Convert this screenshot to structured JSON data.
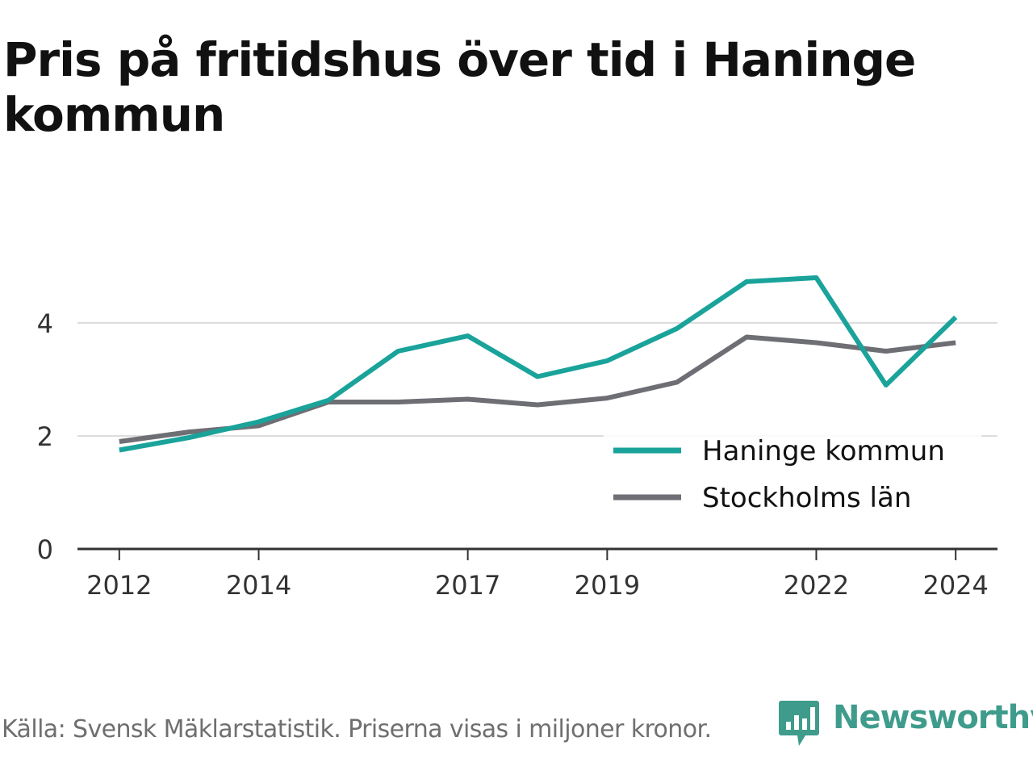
{
  "title": "Pris på fritidshus över tid i Haninge kommun",
  "footer": {
    "source": "Källa: Svensk Mäklarstatistik. Priserna visas i miljoner kronor.",
    "brand": "Newsworthy",
    "brand_icon": "bar-chart-speech-bubble-icon",
    "brand_color": "#3f9c8c"
  },
  "chart_data": {
    "type": "line",
    "x": [
      2012,
      2013,
      2014,
      2015,
      2016,
      2017,
      2018,
      2019,
      2020,
      2021,
      2022,
      2023,
      2024
    ],
    "x_ticks": [
      2012,
      2014,
      2017,
      2019,
      2022,
      2024
    ],
    "y_ticks": [
      0,
      2,
      4
    ],
    "ylim": [
      0,
      5
    ],
    "xlim": [
      2011.4,
      2024.6
    ],
    "grid": true,
    "legend_position": "bottom-right",
    "series": [
      {
        "name": "Haninge kommun",
        "color": "#1aa39a",
        "values": [
          1.75,
          1.97,
          2.25,
          2.63,
          3.5,
          3.77,
          3.05,
          3.33,
          3.9,
          4.73,
          4.8,
          2.9,
          4.1
        ]
      },
      {
        "name": "Stockholms län",
        "color": "#6e6e75",
        "values": [
          1.9,
          2.07,
          2.18,
          2.6,
          2.6,
          2.65,
          2.55,
          2.67,
          2.95,
          3.75,
          3.65,
          3.5,
          3.65
        ]
      }
    ]
  }
}
